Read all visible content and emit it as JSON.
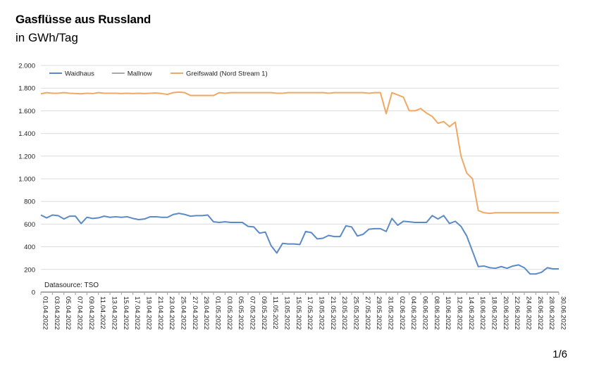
{
  "header": {
    "title": "Gasflüsse aus Russland",
    "subtitle": "in GWh/Tag"
  },
  "footer": {
    "page": "1/6"
  },
  "chart_data": {
    "type": "line",
    "ylim": [
      0,
      2000
    ],
    "yticks": [
      0,
      200,
      400,
      600,
      800,
      1000,
      1200,
      1400,
      1600,
      1800,
      2000
    ],
    "ytick_labels": [
      "0",
      "200",
      "400",
      "600",
      "800",
      "1.000",
      "1.200",
      "1.400",
      "1.600",
      "1.800",
      "2.000"
    ],
    "grid": "horizontal",
    "legend_position": "top-left",
    "source_note": "Datasource: TSO",
    "x": [
      "01.04.2022",
      "02.04.2022",
      "03.04.2022",
      "04.04.2022",
      "05.04.2022",
      "06.04.2022",
      "07.04.2022",
      "08.04.2022",
      "09.04.2022",
      "10.04.2022",
      "11.04.2022",
      "12.04.2022",
      "13.04.2022",
      "14.04.2022",
      "15.04.2022",
      "16.04.2022",
      "17.04.2022",
      "18.04.2022",
      "19.04.2022",
      "20.04.2022",
      "21.04.2022",
      "22.04.2022",
      "23.04.2022",
      "24.04.2022",
      "25.04.2022",
      "26.04.2022",
      "27.04.2022",
      "28.04.2022",
      "29.04.2022",
      "30.04.2022",
      "01.05.2022",
      "02.05.2022",
      "03.05.2022",
      "04.05.2022",
      "05.05.2022",
      "06.05.2022",
      "07.05.2022",
      "08.05.2022",
      "09.05.2022",
      "10.05.2022",
      "11.05.2022",
      "12.05.2022",
      "13.05.2022",
      "14.05.2022",
      "15.05.2022",
      "16.05.2022",
      "17.05.2022",
      "18.05.2022",
      "19.05.2022",
      "20.05.2022",
      "21.05.2022",
      "22.05.2022",
      "23.05.2022",
      "24.05.2022",
      "25.05.2022",
      "26.05.2022",
      "27.05.2022",
      "28.05.2022",
      "29.05.2022",
      "30.05.2022",
      "31.05.2022",
      "01.06.2022",
      "02.06.2022",
      "03.06.2022",
      "04.06.2022",
      "05.06.2022",
      "06.06.2022",
      "07.06.2022",
      "08.06.2022",
      "09.06.2022",
      "10.06.2022",
      "11.06.2022",
      "12.06.2022",
      "13.06.2022",
      "14.06.2022",
      "15.06.2022",
      "16.06.2022",
      "17.06.2022",
      "18.06.2022",
      "19.06.2022",
      "20.06.2022",
      "21.06.2022",
      "22.06.2022",
      "23.06.2022",
      "24.06.2022",
      "25.06.2022",
      "26.06.2022",
      "27.06.2022",
      "28.06.2022",
      "29.06.2022",
      "30.06.2022"
    ],
    "x_tick_labels": [
      "01.04.2022",
      "03.04.2022",
      "05.04.2022",
      "07.04.2022",
      "09.04.2022",
      "11.04.2022",
      "13.04.2022",
      "15.04.2022",
      "17.04.2022",
      "19.04.2022",
      "21.04.2022",
      "23.04.2022",
      "25.04.2022",
      "27.04.2022",
      "29.04.2022",
      "01.05.2022",
      "03.05.2022",
      "05.05.2022",
      "07.05.2022",
      "09.05.2022",
      "11.05.2022",
      "13.05.2022",
      "15.05.2022",
      "17.05.2022",
      "19.05.2022",
      "21.05.2022",
      "23.05.2022",
      "25.05.2022",
      "27.05.2022",
      "29.05.2022",
      "31.05.2022",
      "02.06.2022",
      "04.06.2022",
      "06.06.2022",
      "08.06.2022",
      "10.06.2022",
      "12.06.2022",
      "14.06.2022",
      "16.06.2022",
      "18.06.2022",
      "20.06.2022",
      "22.06.2022",
      "24.06.2022",
      "26.06.2022",
      "28.06.2022",
      "30.06.2022"
    ],
    "series": [
      {
        "name": "Waidhaus",
        "color": "#5b8ac6",
        "values": [
          680,
          655,
          680,
          675,
          645,
          670,
          670,
          605,
          660,
          650,
          655,
          670,
          660,
          665,
          660,
          665,
          650,
          640,
          645,
          665,
          665,
          660,
          660,
          685,
          695,
          685,
          670,
          675,
          675,
          680,
          620,
          615,
          620,
          615,
          615,
          615,
          580,
          575,
          520,
          530,
          410,
          345,
          430,
          425,
          425,
          420,
          535,
          525,
          470,
          475,
          500,
          490,
          490,
          585,
          575,
          495,
          510,
          555,
          560,
          560,
          535,
          650,
          590,
          625,
          620,
          615,
          615,
          615,
          675,
          645,
          675,
          605,
          625,
          580,
          495,
          360,
          225,
          230,
          215,
          210,
          225,
          210,
          230,
          240,
          215,
          160,
          160,
          175,
          215,
          205,
          205
        ]
      },
      {
        "name": "Mallnow",
        "color": "#a9a9a9",
        "values": [
          0,
          0,
          0,
          0,
          0,
          0,
          0,
          0,
          0,
          0,
          0,
          0,
          0,
          0,
          0,
          0,
          0,
          0,
          0,
          0,
          0,
          0,
          0,
          0,
          0,
          0,
          0,
          0,
          0,
          0,
          0,
          0,
          0,
          0,
          0,
          0,
          0,
          0,
          0,
          0,
          0,
          0,
          0,
          0,
          0,
          0,
          0,
          0,
          0,
          0,
          0,
          0,
          0,
          0,
          0,
          0,
          0,
          0,
          0,
          0,
          0,
          0,
          0,
          0,
          0,
          0,
          0,
          0,
          0,
          0,
          0,
          0,
          0,
          0,
          0,
          0,
          0,
          0,
          0,
          0,
          0,
          0,
          0,
          0,
          0,
          0,
          0,
          0,
          0,
          0,
          0
        ]
      },
      {
        "name": "Greifswald (Nord Stream 1)",
        "color": "#f0a864",
        "values": [
          1750,
          1760,
          1755,
          1755,
          1760,
          1755,
          1752,
          1750,
          1755,
          1752,
          1760,
          1755,
          1755,
          1755,
          1752,
          1755,
          1752,
          1755,
          1752,
          1755,
          1757,
          1752,
          1745,
          1760,
          1765,
          1760,
          1735,
          1735,
          1735,
          1735,
          1735,
          1760,
          1755,
          1760,
          1760,
          1760,
          1760,
          1760,
          1760,
          1760,
          1760,
          1755,
          1755,
          1760,
          1760,
          1760,
          1760,
          1760,
          1760,
          1760,
          1755,
          1760,
          1760,
          1760,
          1760,
          1760,
          1760,
          1755,
          1760,
          1760,
          1575,
          1760,
          1740,
          1720,
          1600,
          1600,
          1620,
          1580,
          1550,
          1490,
          1505,
          1460,
          1500,
          1200,
          1050,
          1000,
          720,
          700,
          695,
          700,
          700,
          700,
          700,
          700,
          700,
          700,
          700,
          700,
          700,
          700,
          700
        ]
      }
    ]
  }
}
